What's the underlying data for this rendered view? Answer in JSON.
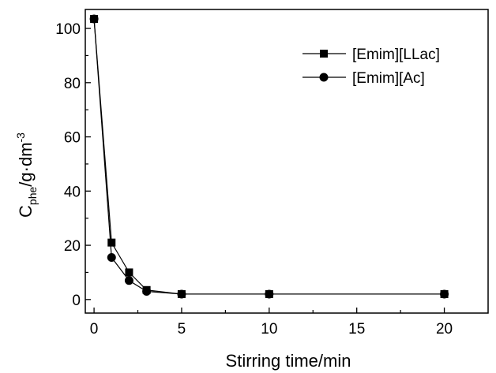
{
  "chart_data": {
    "type": "line",
    "xlabel": "Stirring time/min",
    "ylabel": {
      "main": "C",
      "subscript": "phe",
      "unit": "/g·dm",
      "superscript": "-3"
    },
    "xlim": [
      -0.5,
      22.5
    ],
    "ylim": [
      -5,
      107
    ],
    "xticks": [
      0,
      5,
      10,
      15,
      20
    ],
    "yticks": [
      0,
      20,
      40,
      60,
      80,
      100
    ],
    "legend_position": "top-right",
    "grid": false,
    "series": [
      {
        "name": "[Emim][LLac]",
        "marker": "square",
        "color": "#000000",
        "x": [
          0,
          1,
          2,
          3,
          5,
          10,
          20
        ],
        "y": [
          103.5,
          21,
          10,
          3.5,
          2,
          2,
          2
        ]
      },
      {
        "name": "[Emim][Ac]",
        "marker": "circle",
        "color": "#000000",
        "x": [
          0,
          1,
          2,
          3,
          5,
          10,
          20
        ],
        "y": [
          103.5,
          15.5,
          7,
          3,
          2,
          2,
          2
        ]
      }
    ]
  }
}
